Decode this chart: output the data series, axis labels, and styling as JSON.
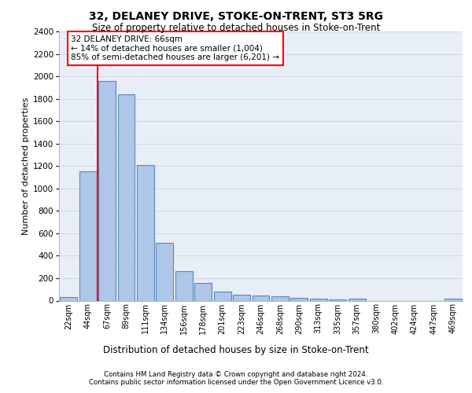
{
  "title_line1": "32, DELANEY DRIVE, STOKE-ON-TRENT, ST3 5RG",
  "title_line2": "Size of property relative to detached houses in Stoke-on-Trent",
  "xlabel": "Distribution of detached houses by size in Stoke-on-Trent",
  "ylabel": "Number of detached properties",
  "categories": [
    "22sqm",
    "44sqm",
    "67sqm",
    "89sqm",
    "111sqm",
    "134sqm",
    "156sqm",
    "178sqm",
    "201sqm",
    "223sqm",
    "246sqm",
    "268sqm",
    "290sqm",
    "313sqm",
    "335sqm",
    "357sqm",
    "380sqm",
    "402sqm",
    "424sqm",
    "447sqm",
    "469sqm"
  ],
  "values": [
    30,
    1150,
    1960,
    1840,
    1210,
    515,
    265,
    155,
    80,
    50,
    45,
    40,
    22,
    20,
    10,
    20,
    0,
    0,
    0,
    0,
    20
  ],
  "bar_color": "#aec6e8",
  "bar_edge_color": "#5588bb",
  "bar_edge_width": 0.8,
  "grid_color": "#d0d8e8",
  "background_color": "#e8eef8",
  "ylim": [
    0,
    2400
  ],
  "yticks": [
    0,
    200,
    400,
    600,
    800,
    1000,
    1200,
    1400,
    1600,
    1800,
    2000,
    2200,
    2400
  ],
  "annotation_text": "32 DELANEY DRIVE: 66sqm\n← 14% of detached houses are smaller (1,004)\n85% of semi-detached houses are larger (6,201) →",
  "vline_x": 1.5,
  "footer_line1": "Contains HM Land Registry data © Crown copyright and database right 2024.",
  "footer_line2": "Contains public sector information licensed under the Open Government Licence v3.0."
}
